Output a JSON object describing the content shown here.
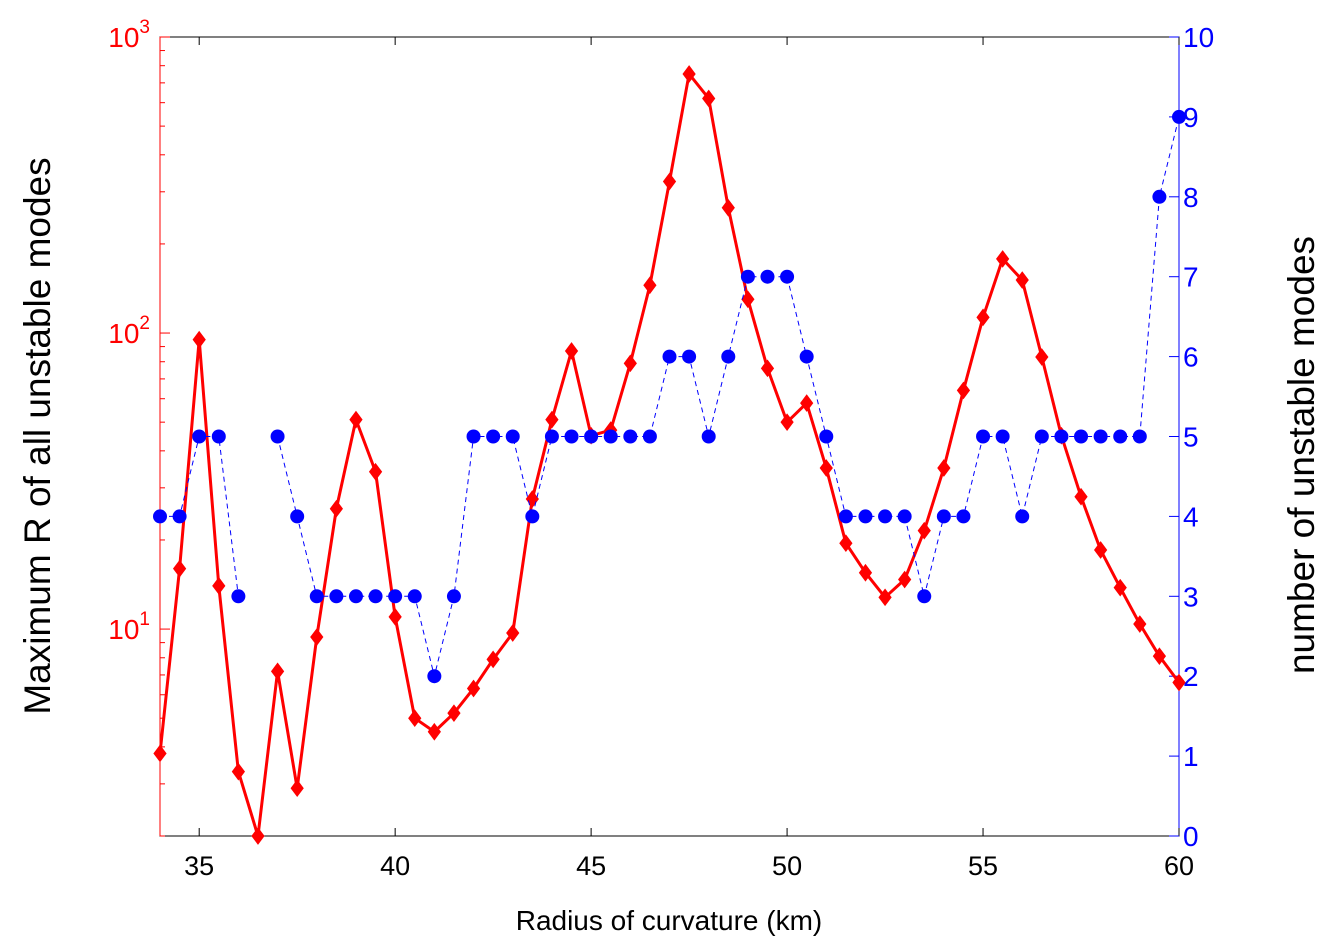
{
  "chart_data": {
    "type": "line",
    "xlabel": "Radius of curvature (km)",
    "xlim": [
      34,
      60
    ],
    "xticks": [
      "35",
      "40",
      "45",
      "50",
      "55",
      "60"
    ],
    "left_axis": {
      "label": "Maximum R of all unstable modes",
      "scale": "log",
      "ylim": [
        2.0,
        1000
      ],
      "ticks": [
        {
          "base": "10",
          "exp": "1",
          "value": 10
        },
        {
          "base": "10",
          "exp": "2",
          "value": 100
        },
        {
          "base": "10",
          "exp": "3",
          "value": 1000
        }
      ],
      "color": "#ff0000"
    },
    "right_axis": {
      "label": "number of unstable modes",
      "scale": "linear",
      "ylim": [
        0,
        10
      ],
      "ticks": [
        "0",
        "1",
        "2",
        "3",
        "4",
        "5",
        "6",
        "7",
        "8",
        "9",
        "10"
      ],
      "color": "#0000ff"
    },
    "x": [
      34,
      34.5,
      35,
      35.5,
      36,
      36.5,
      37,
      37.5,
      38,
      38.5,
      39,
      39.5,
      40,
      40.5,
      41,
      41.5,
      42,
      42.5,
      43,
      43.5,
      44,
      44.5,
      45,
      45.5,
      46,
      46.5,
      47,
      47.5,
      48,
      48.5,
      49,
      49.5,
      50,
      50.5,
      51,
      51.5,
      52,
      52.5,
      53,
      53.5,
      54,
      54.5,
      55,
      55.5,
      56,
      56.5,
      57,
      57.5,
      58,
      58.5,
      59,
      59.5,
      60
    ],
    "series": [
      {
        "axis": "left",
        "style": "solid-diamond",
        "color": "#ff0000",
        "values": [
          3.8,
          16,
          95,
          14,
          3.3,
          2.0,
          7.2,
          2.9,
          9.4,
          25.5,
          51,
          34,
          11,
          5.0,
          4.5,
          5.2,
          6.3,
          7.9,
          9.7,
          27.5,
          51,
          87,
          45,
          47,
          79,
          145,
          325,
          750,
          620,
          265,
          130,
          76,
          50,
          58,
          35,
          19.5,
          15.5,
          12.8,
          14.7,
          21.5,
          35,
          64,
          113,
          178,
          151,
          83,
          45,
          28,
          18.5,
          13.8,
          10.4,
          8.1,
          6.6
        ]
      },
      {
        "axis": "right",
        "style": "dashed-dot",
        "color": "#0000ff",
        "values": [
          4,
          4,
          5,
          5,
          3,
          null,
          5,
          4,
          3,
          3,
          3,
          3,
          3,
          3,
          2,
          3,
          5,
          5,
          5,
          4,
          5,
          5,
          5,
          5,
          5,
          5,
          6,
          6,
          5,
          6,
          7,
          7,
          7,
          6,
          5,
          4,
          4,
          4,
          4,
          3,
          4,
          4,
          5,
          5,
          4,
          5,
          5,
          5,
          5,
          5,
          5,
          8,
          9
        ]
      }
    ]
  }
}
